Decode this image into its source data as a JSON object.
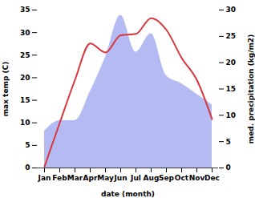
{
  "chart_data": {
    "type": "line",
    "x_label": "date (month)",
    "categories": [
      "Jan",
      "Feb",
      "Mar",
      "Apr",
      "May",
      "Jun",
      "Jul",
      "Aug",
      "Sep",
      "Oct",
      "Nov",
      "Dec"
    ],
    "series": [
      {
        "name": "med. precipitation (kg/m2)",
        "type": "area",
        "axis": "y2",
        "color": "#b3bbf2",
        "values": [
          7,
          9,
          9,
          14.5,
          21,
          29,
          22,
          25.5,
          17.5,
          16,
          14,
          12
        ]
      },
      {
        "name": "max temp (C)",
        "type": "line",
        "color": "#d9363e",
        "values": [
          0.3,
          10,
          19.5,
          27.6,
          25.6,
          29.4,
          29.7,
          33.2,
          30.6,
          24.4,
          19.5,
          10.8
        ]
      }
    ],
    "ylim": [
      0,
      35
    ],
    "yticks": [
      0,
      5,
      10,
      15,
      20,
      25,
      30,
      35
    ],
    "y2lim": [
      0,
      30
    ],
    "y2ticks": [
      0,
      5,
      10,
      15,
      20,
      25,
      30
    ],
    "grid": false
  }
}
